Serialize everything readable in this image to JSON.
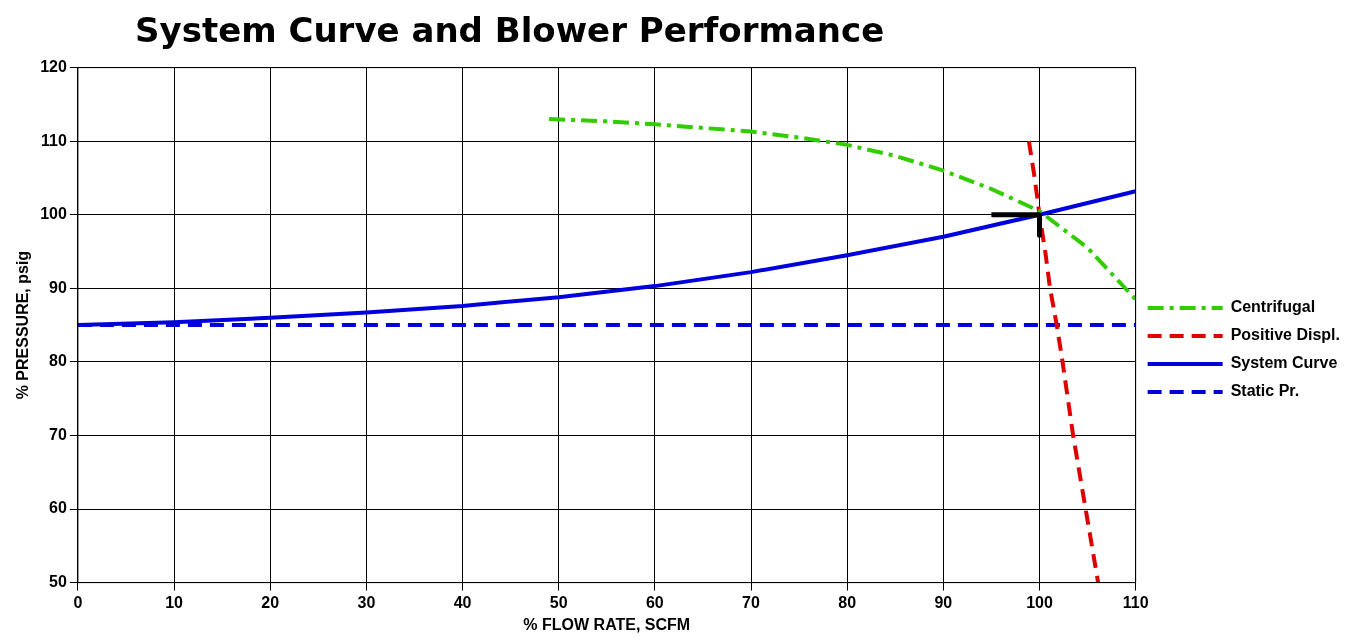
{
  "chart_data": {
    "type": "line",
    "title": "System Curve and Blower Performance",
    "xlabel": "% FLOW RATE, SCFM",
    "ylabel": "% PRESSURE, psig",
    "xlim": [
      0,
      110
    ],
    "ylim": [
      50,
      120
    ],
    "xticks": [
      0,
      10,
      20,
      30,
      40,
      50,
      60,
      70,
      80,
      90,
      100,
      110
    ],
    "yticks": [
      50,
      60,
      70,
      80,
      90,
      100,
      110,
      120
    ],
    "grid": true,
    "legend": "right",
    "marker": "none",
    "series": [
      {
        "name": "Centrifugal",
        "color": "#33cc00",
        "line_style": "dashdot",
        "x": [
          49,
          55,
          60,
          65,
          70,
          75,
          80,
          85,
          90,
          95,
          100,
          105,
          110
        ],
        "values": [
          113,
          112.7,
          112.3,
          111.8,
          111.3,
          110.5,
          109.5,
          108,
          106,
          103.5,
          100.5,
          95.5,
          88.5
        ]
      },
      {
        "name": "Positive Displ.",
        "color": "#e00000",
        "line_style": "dashed",
        "x": [
          98.9,
          99.5,
          100,
          100.6,
          101.1,
          101.8,
          102.4,
          103.5,
          104.8,
          106.1
        ],
        "values": [
          110,
          105,
          100,
          95,
          90,
          85,
          80,
          70,
          60,
          50
        ]
      },
      {
        "name": "System Curve",
        "color": "#0000dd",
        "line_style": "solid",
        "x": [
          0,
          10,
          20,
          30,
          40,
          50,
          60,
          70,
          80,
          90,
          100,
          110
        ],
        "values": [
          85,
          85.4,
          86,
          86.7,
          87.6,
          88.8,
          90.3,
          92.2,
          94.5,
          97,
          100,
          103.2
        ]
      },
      {
        "name": "Static Pr.",
        "color": "#0000dd",
        "line_style": "dashed",
        "x": [
          0,
          110
        ],
        "values": [
          85,
          85
        ]
      },
      {
        "color": "#000000",
        "line_style": "solid",
        "x": [
          95,
          100
        ],
        "values": [
          100,
          100
        ]
      },
      {
        "color": "#000000",
        "line_style": "solid",
        "x": [
          100,
          100
        ],
        "values": [
          100,
          97.2
        ]
      }
    ]
  }
}
